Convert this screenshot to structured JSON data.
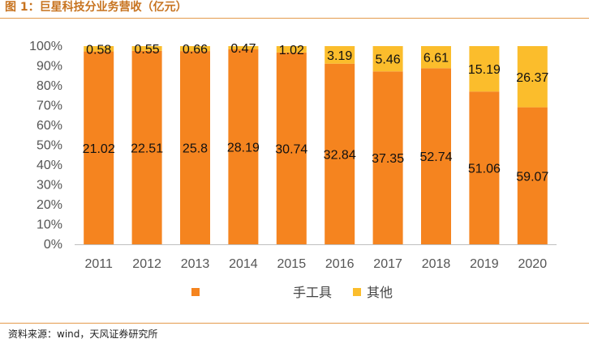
{
  "header": {
    "title": "图 1：巨星科技分业务营收（亿元）"
  },
  "footer": {
    "source": "资料来源：wind，天风证券研究所"
  },
  "chart_data": {
    "type": "bar",
    "stacked": true,
    "normalized": true,
    "title": "图 1：巨星科技分业务营收（亿元）",
    "categories": [
      "2011",
      "2012",
      "2013",
      "2014",
      "2015",
      "2016",
      "2017",
      "2018",
      "2019",
      "2020"
    ],
    "series": [
      {
        "name": "手工具",
        "color": "#f5841f",
        "values": [
          21.02,
          22.51,
          25.8,
          28.19,
          30.74,
          32.84,
          37.35,
          52.74,
          51.06,
          59.07
        ]
      },
      {
        "name": "其他",
        "color": "#fbbd2c",
        "values": [
          0.58,
          0.55,
          0.66,
          0.47,
          1.02,
          3.19,
          5.46,
          6.61,
          15.19,
          26.37
        ]
      }
    ],
    "yticks": [
      "0%",
      "10%",
      "20%",
      "30%",
      "40%",
      "50%",
      "60%",
      "70%",
      "80%",
      "90%",
      "100%"
    ],
    "ylim": [
      0,
      100
    ],
    "grid": false,
    "legend": "bottom"
  }
}
